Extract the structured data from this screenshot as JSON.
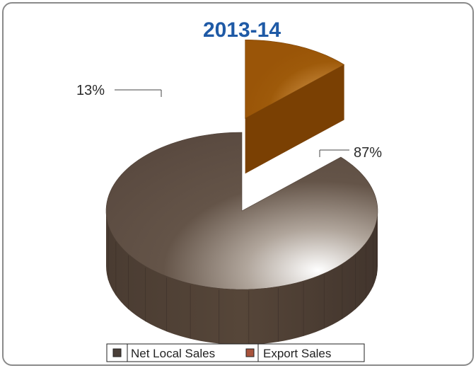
{
  "chart_data": {
    "type": "pie",
    "title": "2013-14",
    "categories": [
      "Net Local Sales",
      "Export Sales"
    ],
    "values": [
      87,
      13
    ],
    "data_labels": [
      "87%",
      "13%"
    ],
    "legend_position": "bottom",
    "colors": {
      "Net Local Sales": "#5a4a40",
      "Export Sales": "#a05a10",
      "legend_net_local": "#4a3f38",
      "legend_export": "#a8533c"
    },
    "style": "3d-exploded",
    "exploded": "Export Sales"
  }
}
